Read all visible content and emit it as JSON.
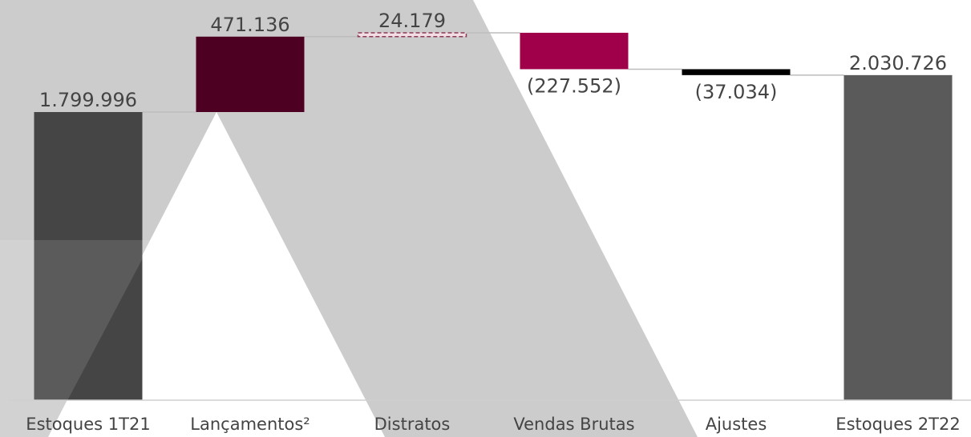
{
  "chart_data": {
    "type": "waterfall",
    "categories": [
      "Estoques 1T21",
      "Lançamentos²",
      "Distratos",
      "Vendas Brutas",
      "Ajustes",
      "Estoques 2T22"
    ],
    "values": [
      1799996,
      471136,
      24179,
      -227552,
      -37034,
      2030726
    ],
    "value_labels": [
      "1.799.996",
      "471.136",
      "24.179",
      "(227.552)",
      "(37.034)",
      "2.030.726"
    ],
    "totals": [
      true,
      false,
      false,
      false,
      false,
      true
    ],
    "colors": [
      "#454545",
      "#4d0022",
      "#f3dde4",
      "#a0004a",
      "#000000",
      "#5a5a5a"
    ],
    "ylim": [
      0,
      2500000
    ]
  }
}
